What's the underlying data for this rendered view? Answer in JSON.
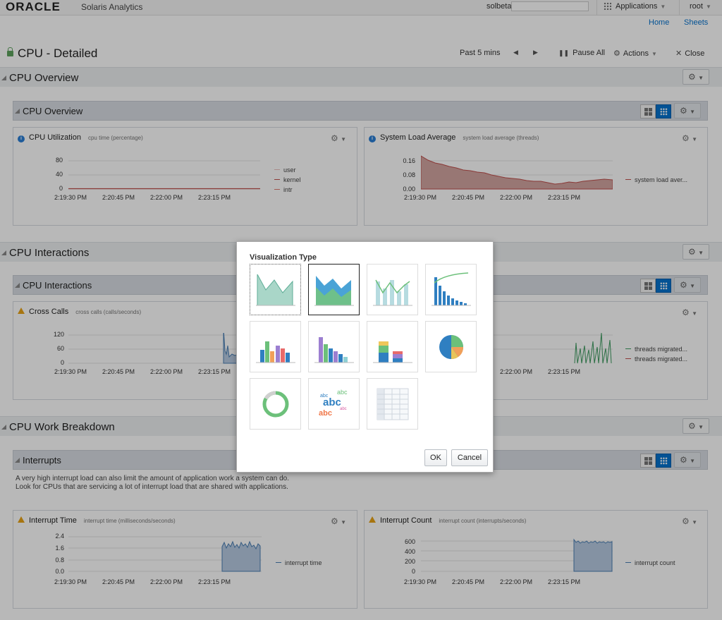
{
  "header": {
    "logo": "ORACLE",
    "app_name": "Solaris Analytics",
    "user": "solbeta",
    "applications_label": "Applications",
    "root_label": "root",
    "links": [
      "Home",
      "Sheets"
    ]
  },
  "page": {
    "title": "CPU - Detailed",
    "range": "Past 5 mins",
    "pause_label": "Pause All",
    "actions_label": "Actions",
    "close_label": "Close"
  },
  "sections": [
    {
      "title": "CPU Overview",
      "group_title": "CPU Overview"
    },
    {
      "title": "CPU Interactions",
      "group_title": "CPU Interactions"
    },
    {
      "title": "CPU Work Breakdown",
      "group_title": "Interrupts"
    }
  ],
  "x_ticks": [
    "2:19:30 PM",
    "2:20:45 PM",
    "2:22:00 PM",
    "2:23:15 PM"
  ],
  "panels": {
    "cpu_util": {
      "title": "CPU Utilization",
      "subtitle": "cpu time (percentage)",
      "y_ticks": [
        "80",
        "40",
        "0"
      ],
      "legend": [
        "user",
        "kernel",
        "intr"
      ]
    },
    "load_avg": {
      "title": "System Load Average",
      "subtitle": "system load average (threads)",
      "y_ticks": [
        "0.16",
        "0.08",
        "0.00"
      ],
      "legend": [
        "system load aver..."
      ]
    },
    "cross_calls": {
      "title": "Cross Calls",
      "subtitle": "cross calls (calls/seconds)",
      "y_ticks": [
        "120",
        "60",
        "0"
      ]
    },
    "migrations": {
      "legend": [
        "threads migrated...",
        "threads migrated..."
      ]
    },
    "interrupt_time": {
      "title": "Interrupt Time",
      "subtitle": "interrupt time (milliseconds/seconds)",
      "y_ticks": [
        "2.4",
        "1.6",
        "0.8",
        "0.0"
      ],
      "legend": [
        "interrupt time"
      ]
    },
    "interrupt_count": {
      "title": "Interrupt Count",
      "subtitle": "interrupt count (interrupts/seconds)",
      "y_ticks": [
        "600",
        "400",
        "200",
        "0"
      ],
      "legend": [
        "interrupt count"
      ]
    }
  },
  "interrupts_description": "A very high interrupt load can also limit the amount of application work a system can do. Look for CPUs that are servicing a lot of interrupt load that are shared with applications.",
  "dialog": {
    "title": "Visualization Type",
    "tiles": [
      {
        "icon": "area-chart-icon"
      },
      {
        "icon": "stacked-area-chart-icon"
      },
      {
        "icon": "line-bar-chart-icon"
      },
      {
        "icon": "pareto-chart-icon"
      },
      {
        "icon": "bar-chart-icon"
      },
      {
        "icon": "horizontal-bar-chart-icon"
      },
      {
        "icon": "stacked-bar-chart-icon"
      },
      {
        "icon": "pie-chart-icon"
      },
      {
        "icon": "donut-chart-icon"
      },
      {
        "icon": "tag-cloud-icon",
        "words": [
          "abc",
          "abc",
          "abc",
          "abc",
          "abc"
        ]
      },
      {
        "icon": "table-icon"
      }
    ],
    "ok_label": "OK",
    "cancel_label": "Cancel"
  },
  "colors": {
    "accent": "#0572ce",
    "kernel_line": "#c0504d",
    "load_fill": "#c98a86",
    "series_blue": "#4a7fb5",
    "series_green": "#3c9a5f"
  }
}
